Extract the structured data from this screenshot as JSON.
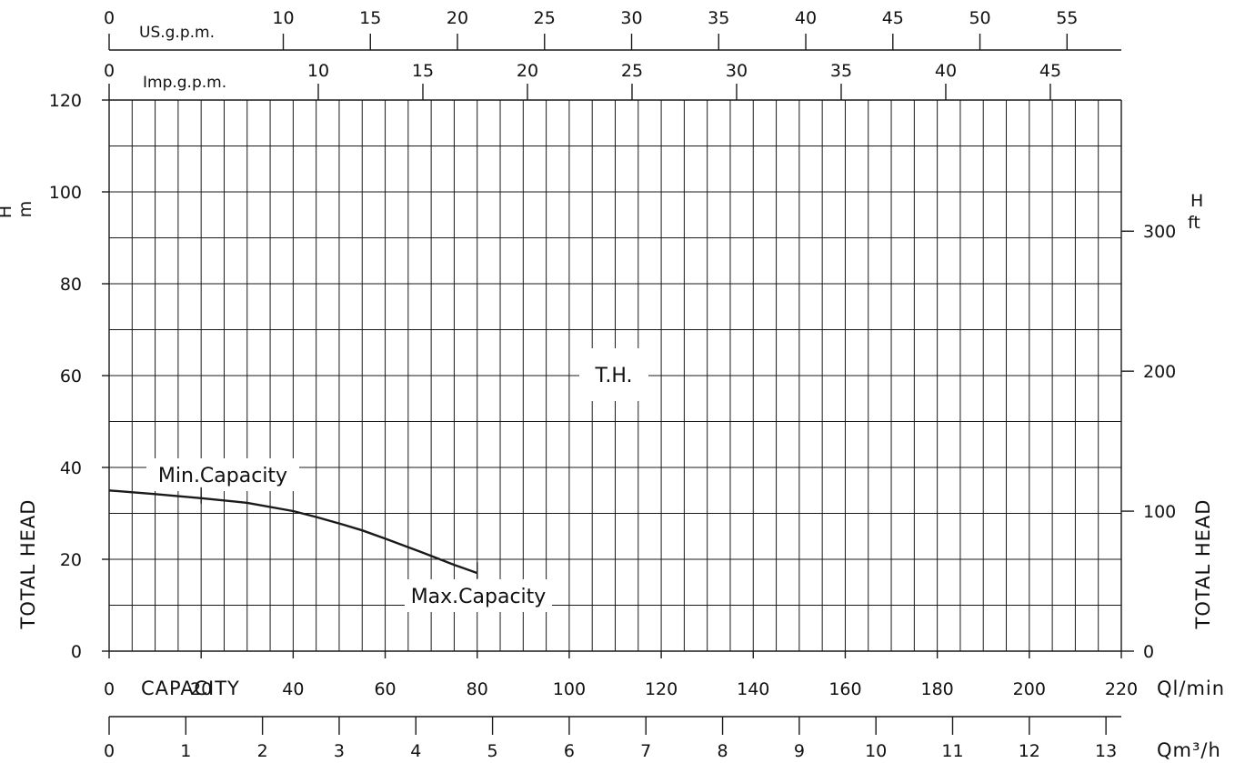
{
  "chart_data": {
    "type": "line",
    "title": "",
    "x": [
      0,
      10,
      20,
      30,
      40,
      45,
      50,
      55,
      60,
      68,
      75,
      80
    ],
    "series": [
      {
        "values": [
          35,
          34.2,
          33.3,
          32.3,
          30.5,
          29.2,
          27.8,
          26.3,
          24.5,
          21.5,
          18.8,
          17
        ]
      }
    ],
    "xlim": [
      0,
      220
    ],
    "ylim": [
      0,
      120
    ],
    "grid": true,
    "xlabel": "CAPACITY",
    "xunit": "Ql/min",
    "ylabel": "TOTAL HEAD",
    "yunit": "H m",
    "y2label": "TOTAL HEAD",
    "y2unit": "H ft",
    "y_ticks": [
      0,
      20,
      40,
      60,
      80,
      100,
      120
    ],
    "x_ticks": [
      0,
      20,
      40,
      60,
      80,
      100,
      120,
      140,
      160,
      180,
      200,
      220
    ],
    "y2_ticks": [
      0,
      100,
      200,
      300
    ],
    "qm3h_label": "Qm³/h",
    "qm3h_ticks": [
      0,
      1,
      2,
      3,
      4,
      5,
      6,
      7,
      8,
      9,
      10,
      11,
      12,
      13
    ],
    "us_gpm_label": "US.g.p.m.",
    "us_gpm_ticks": [
      0,
      10,
      15,
      20,
      25,
      30,
      35,
      40,
      45,
      50,
      55
    ],
    "imp_gpm_label": "Imp.g.p.m.",
    "imp_gpm_ticks": [
      0,
      10,
      15,
      20,
      25,
      30,
      35,
      40,
      45
    ],
    "annotations": {
      "min_capacity": "Min.Capacity",
      "min_capacity_x": 20,
      "max_capacity": "Max.Capacity",
      "max_capacity_x": 80,
      "model": "T.H."
    }
  }
}
